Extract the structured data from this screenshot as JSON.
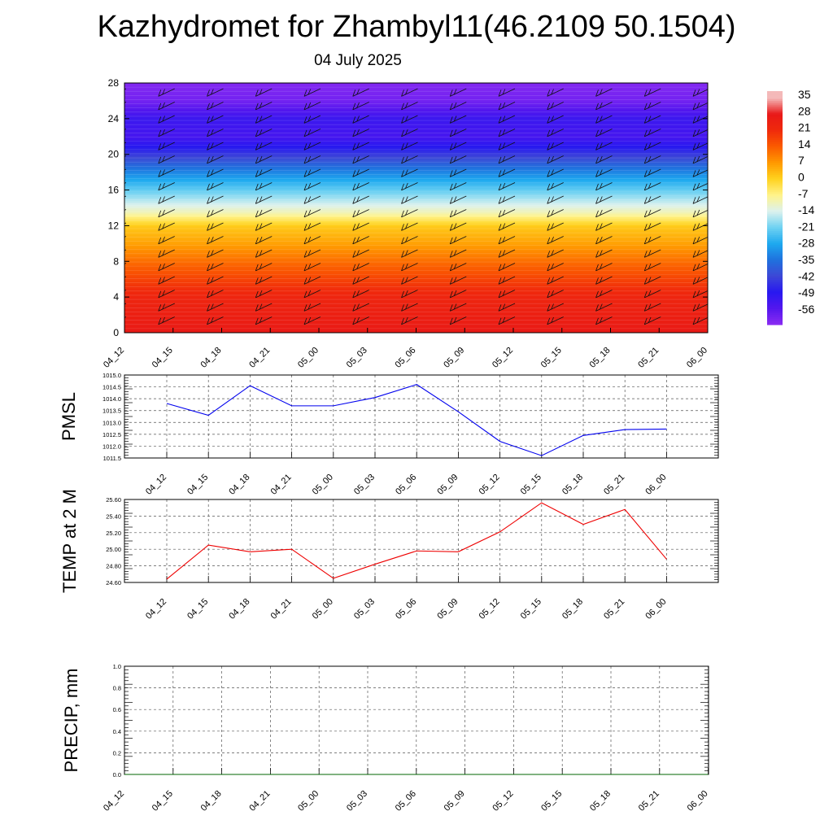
{
  "page": {
    "title": "Kazhydromet for Zhambyl11(46.2109 50.1504)",
    "subtitle": "04 July 2025"
  },
  "colorbar": {
    "labels": [
      "35",
      "28",
      "21",
      "14",
      "7",
      "0",
      "-7",
      "-14",
      "-21",
      "-28",
      "-35",
      "-42",
      "-49",
      "-56"
    ],
    "stops": [
      {
        "v": 35,
        "c": "#f4b9b9"
      },
      {
        "v": 28,
        "c": "#e81818"
      },
      {
        "v": 21,
        "c": "#f02a0c"
      },
      {
        "v": 14,
        "c": "#fb5b00"
      },
      {
        "v": 7,
        "c": "#ff9800"
      },
      {
        "v": 0,
        "c": "#ffd21e"
      },
      {
        "v": -7,
        "c": "#fff38a"
      },
      {
        "v": -14,
        "c": "#ddf2ee"
      },
      {
        "v": -21,
        "c": "#6fd2f2"
      },
      {
        "v": -28,
        "c": "#1ea9ef"
      },
      {
        "v": -35,
        "c": "#1f72de"
      },
      {
        "v": -42,
        "c": "#3d48d6"
      },
      {
        "v": -49,
        "c": "#2818f0"
      },
      {
        "v": -56,
        "c": "#5317ee"
      },
      {
        "v": -63,
        "c": "#8a2bf2"
      }
    ]
  },
  "chart_data": [
    {
      "type": "heatmap",
      "title": "",
      "xlabel": "",
      "ylabel": "",
      "x_ticks": [
        "04_12",
        "04_15",
        "04_18",
        "04_21",
        "05_00",
        "05_03",
        "05_06",
        "05_09",
        "05_12",
        "05_15",
        "05_18",
        "05_21",
        "06_00"
      ],
      "y_ticks": [
        "0",
        "4",
        "8",
        "12",
        "16",
        "20",
        "24",
        "28"
      ],
      "ylim": [
        0,
        28
      ],
      "field": "temperature",
      "profile": [
        {
          "y": 0,
          "v": 27
        },
        {
          "y": 4,
          "v": 23
        },
        {
          "y": 8,
          "v": 12
        },
        {
          "y": 10,
          "v": 6
        },
        {
          "y": 12,
          "v": 1
        },
        {
          "y": 13.5,
          "v": -10
        },
        {
          "y": 16,
          "v": -22
        },
        {
          "y": 18.5,
          "v": -35
        },
        {
          "y": 20.5,
          "v": -47
        },
        {
          "y": 22,
          "v": -54
        },
        {
          "y": 24,
          "v": -52
        },
        {
          "y": 26,
          "v": -60
        },
        {
          "y": 28,
          "v": -62
        }
      ],
      "overlay": "wind-barbs"
    },
    {
      "type": "line",
      "ylabel": "PMSL",
      "x": [
        "04_12",
        "04_15",
        "04_18",
        "04_21",
        "05_00",
        "05_03",
        "05_06",
        "05_09",
        "05_12",
        "05_15",
        "05_18",
        "05_21",
        "06_00"
      ],
      "y_ticks": [
        "1011.5",
        "1012.0",
        "1012.5",
        "1013.0",
        "1013.5",
        "1014.0",
        "1014.5",
        "1015.0"
      ],
      "ylim": [
        1011.5,
        1015.0
      ],
      "series": [
        {
          "values": [
            1013.8,
            1013.3,
            1014.55,
            1013.7,
            1013.7,
            1014.05,
            1014.6,
            1013.45,
            1012.2,
            1011.6,
            1012.45,
            1012.7,
            1012.72
          ],
          "color": "#0000ee"
        }
      ],
      "grid": true
    },
    {
      "type": "line",
      "ylabel": "TEMP at 2 M",
      "x": [
        "04_12",
        "04_15",
        "04_18",
        "04_21",
        "05_00",
        "05_03",
        "05_06",
        "05_09",
        "05_12",
        "05_15",
        "05_18",
        "05_21",
        "06_00"
      ],
      "y_ticks": [
        "24.60",
        "24.80",
        "25.00",
        "25.20",
        "25.40",
        "25.60"
      ],
      "ylim": [
        24.6,
        25.6
      ],
      "series": [
        {
          "values": [
            24.64,
            25.05,
            24.97,
            25.0,
            24.65,
            24.82,
            24.98,
            24.97,
            25.21,
            25.56,
            25.3,
            25.48,
            24.88
          ],
          "color": "#ee0000"
        }
      ],
      "grid": true
    },
    {
      "type": "line",
      "ylabel": "PRECIP, mm",
      "x": [
        "04_12",
        "04_15",
        "04_18",
        "04_21",
        "05_00",
        "05_03",
        "05_06",
        "05_09",
        "05_12",
        "05_15",
        "05_18",
        "05_21",
        "06_00"
      ],
      "y_ticks": [
        "0.0",
        "0.2",
        "0.4",
        "0.6",
        "0.8",
        "1.0"
      ],
      "ylim": [
        0.0,
        1.0
      ],
      "series": [
        {
          "values": [
            0,
            0,
            0,
            0,
            0,
            0,
            0,
            0,
            0,
            0,
            0,
            0,
            0
          ],
          "color": "#006400"
        }
      ],
      "grid": true
    }
  ]
}
